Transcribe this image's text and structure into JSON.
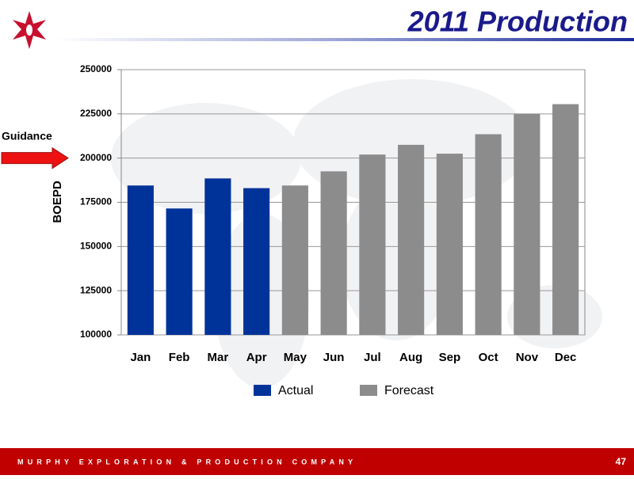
{
  "chart_data": {
    "type": "bar",
    "title": "2011 Production",
    "y_label": "BOEPD",
    "categories": [
      "Jan",
      "Feb",
      "Mar",
      "Apr",
      "May",
      "Jun",
      "Jul",
      "Aug",
      "Sep",
      "Oct",
      "Nov",
      "Dec"
    ],
    "series": [
      {
        "name": "Actual",
        "color": "#003399",
        "values": [
          184500,
          171500,
          188500,
          183000,
          null,
          null,
          null,
          null,
          null,
          null,
          null,
          null
        ]
      },
      {
        "name": "Forecast",
        "color": "#8c8c8c",
        "values": [
          null,
          null,
          null,
          null,
          184500,
          192500,
          202000,
          207500,
          202500,
          213500,
          225000,
          230500
        ]
      }
    ],
    "ylim": [
      100000,
      250000
    ],
    "yticks": [
      100000,
      125000,
      150000,
      175000,
      200000,
      225000,
      250000
    ],
    "grid": true,
    "legend": "bottom",
    "annotation": {
      "label": "Guidance",
      "value": 200000
    }
  },
  "footer": {
    "company": "MURPHY EXPLORATION & PRODUCTION COMPANY",
    "page": "47"
  }
}
